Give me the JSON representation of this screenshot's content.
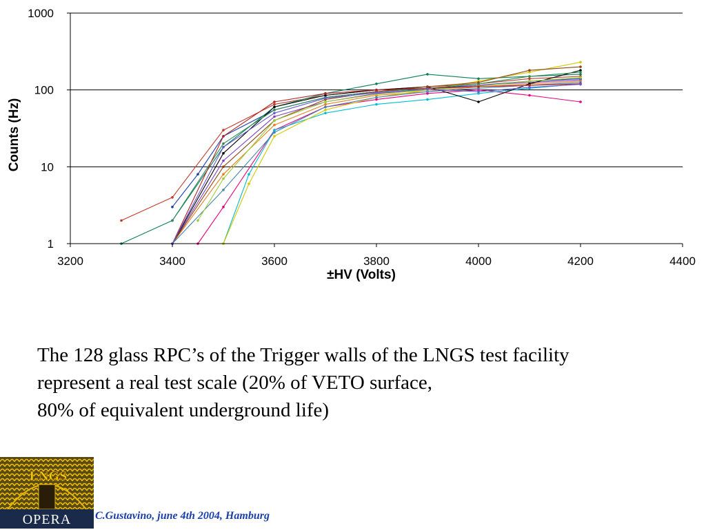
{
  "chart_data": {
    "type": "line",
    "title": "",
    "xlabel": "±HV (Volts)",
    "ylabel": "Counts (Hz)",
    "xlim": [
      3200,
      4400
    ],
    "ylim": [
      1,
      1000
    ],
    "y_scale": "log",
    "x_ticks": [
      "3200",
      "3400",
      "3600",
      "3800",
      "4000",
      "4200",
      "4400"
    ],
    "y_ticks": [
      "1",
      "10",
      "100",
      "1000"
    ],
    "grid": "horizontal major gridlines at 10, 100, 1000",
    "legend": "none",
    "note": "many overlapping curves (one per RPC); representative series shown",
    "series": [
      {
        "color": "#c0392b",
        "x": [
          3300,
          3400,
          3500,
          3600,
          3700,
          3800,
          3900,
          4000,
          4100,
          4200
        ],
        "values": [
          2,
          4,
          30,
          65,
          85,
          100,
          110,
          120,
          140,
          150
        ]
      },
      {
        "color": "#1a3fa8",
        "x": [
          3400,
          3450,
          3500,
          3600,
          3700,
          3800,
          3900,
          4000,
          4100,
          4200
        ],
        "values": [
          3,
          8,
          25,
          55,
          80,
          95,
          105,
          115,
          130,
          140
        ]
      },
      {
        "color": "#0a7d5a",
        "x": [
          3300,
          3400,
          3500,
          3600,
          3700,
          3800,
          3900,
          4000,
          4100,
          4200
        ],
        "values": [
          1,
          2,
          18,
          60,
          90,
          120,
          160,
          140,
          150,
          160
        ]
      },
      {
        "color": "#7f3fbf",
        "x": [
          3400,
          3500,
          3600,
          3700,
          3800,
          3900,
          4000,
          4100,
          4200
        ],
        "values": [
          1,
          12,
          45,
          70,
          90,
          100,
          115,
          125,
          135
        ]
      },
      {
        "color": "#e67e22",
        "x": [
          3400,
          3500,
          3600,
          3700,
          3800,
          3900,
          4000,
          4100,
          4200
        ],
        "values": [
          1,
          8,
          35,
          65,
          85,
          95,
          110,
          120,
          130
        ]
      },
      {
        "color": "#e6007e",
        "x": [
          3450,
          3500,
          3600,
          3700,
          3800,
          3900,
          4000,
          4100,
          4200
        ],
        "values": [
          1,
          3,
          30,
          60,
          75,
          90,
          100,
          85,
          70
        ]
      },
      {
        "color": "#00bcd4",
        "x": [
          3500,
          3550,
          3600,
          3700,
          3800,
          3900,
          4000,
          4100,
          4200
        ],
        "values": [
          1,
          8,
          30,
          50,
          65,
          75,
          90,
          105,
          120
        ]
      },
      {
        "color": "#d4c800",
        "x": [
          3500,
          3550,
          3600,
          3700,
          3800,
          3900,
          4000,
          4100,
          4200
        ],
        "values": [
          1,
          6,
          25,
          55,
          80,
          100,
          130,
          170,
          230
        ]
      },
      {
        "color": "#000000",
        "x": [
          3400,
          3500,
          3600,
          3700,
          3800,
          3900,
          4000,
          4100,
          4200
        ],
        "values": [
          1,
          15,
          60,
          85,
          100,
          110,
          70,
          120,
          180
        ]
      },
      {
        "color": "#2e8b57",
        "x": [
          3400,
          3500,
          3600,
          3700,
          3800,
          3900,
          4000,
          4100,
          4200
        ],
        "values": [
          2,
          20,
          55,
          80,
          95,
          105,
          120,
          150,
          170
        ]
      },
      {
        "color": "#8b4513",
        "x": [
          3400,
          3500,
          3600,
          3700,
          3800,
          3900,
          4000,
          4100,
          4200
        ],
        "values": [
          1,
          10,
          40,
          75,
          95,
          110,
          125,
          180,
          200
        ]
      },
      {
        "color": "#4682b4",
        "x": [
          3400,
          3500,
          3600,
          3700,
          3800,
          3900,
          4000,
          4100,
          4200
        ],
        "values": [
          1,
          5,
          28,
          60,
          80,
          95,
          105,
          115,
          125
        ]
      },
      {
        "color": "#9acd32",
        "x": [
          3450,
          3500,
          3600,
          3700,
          3800,
          3900,
          4000,
          4100,
          4200
        ],
        "values": [
          2,
          7,
          40,
          70,
          88,
          100,
          112,
          130,
          145
        ]
      },
      {
        "color": "#b22222",
        "x": [
          3400,
          3500,
          3600,
          3700,
          3800,
          3900,
          4000,
          4100,
          4200
        ],
        "values": [
          1,
          25,
          70,
          90,
          100,
          105,
          110,
          115,
          120
        ]
      },
      {
        "color": "#6a5acd",
        "x": [
          3400,
          3500,
          3600,
          3700,
          3800,
          3900,
          4000,
          4100,
          4200
        ],
        "values": [
          1,
          18,
          50,
          78,
          92,
          102,
          95,
          108,
          118
        ]
      }
    ]
  },
  "caption": {
    "line1": "The 128 glass RPC’s of the Trigger walls of the LNGS test facility",
    "line2": "represent a real test scale (20% of VETO surface,",
    "line3": "80% of equivalent underground life)"
  },
  "logo": {
    "top_text": "LNGS",
    "bottom_text": "OPERA"
  },
  "footer": "C.Gustavino, june 4th 2004, Hamburg"
}
